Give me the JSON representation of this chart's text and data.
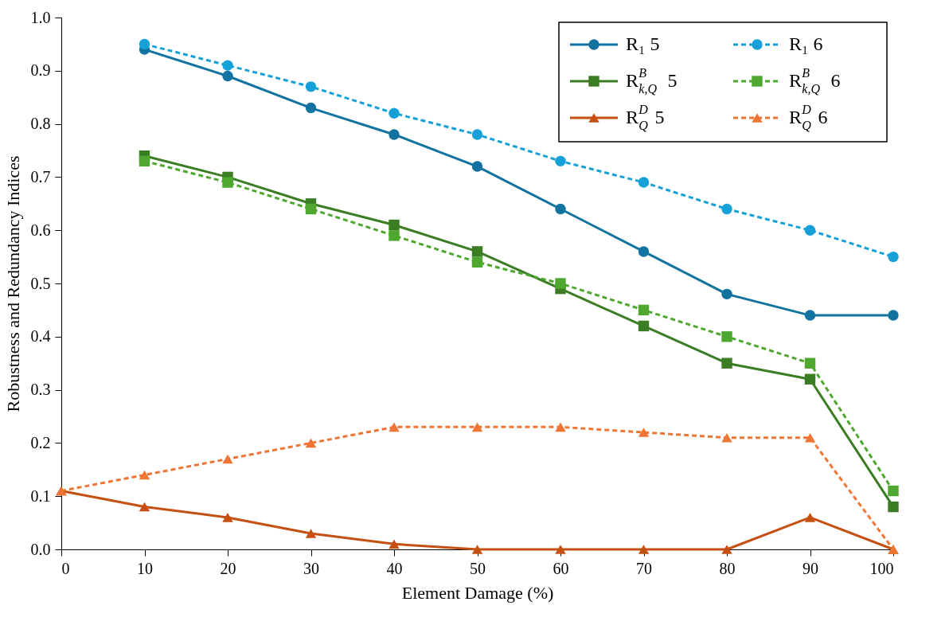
{
  "chart_data": {
    "type": "line",
    "xlabel": "Element Damage (%)",
    "ylabel": "Robustness and Redundancy Indices",
    "xlim": [
      0,
      100
    ],
    "xticks": [
      0,
      10,
      20,
      30,
      40,
      50,
      60,
      70,
      80,
      90,
      100
    ],
    "ylim": [
      0,
      1.0
    ],
    "yticks": [
      {
        "value": 0,
        "label": "0.0"
      },
      {
        "value": 0.1,
        "label": "0.1"
      },
      {
        "value": 0.2,
        "label": "0.2"
      },
      {
        "value": 0.3,
        "label": "0.3"
      },
      {
        "value": 0.4,
        "label": "0.4"
      },
      {
        "value": 0.5,
        "label": "0.5"
      },
      {
        "value": 0.6,
        "label": "0.6"
      },
      {
        "value": 0.7,
        "label": "0.7"
      },
      {
        "value": 0.8,
        "label": "0.8"
      },
      {
        "value": 0.9,
        "label": "0.9"
      },
      {
        "value": 1.0,
        "label": "1.0"
      }
    ],
    "grid": false,
    "legend": "top right",
    "series": [
      {
        "name": "R₁ 5",
        "color": "#1273a0",
        "marker": "circle",
        "line_style": "solid",
        "x": [
          10,
          20,
          30,
          40,
          50,
          60,
          70,
          80,
          90,
          100
        ],
        "values": [
          0.94,
          0.89,
          0.83,
          0.78,
          0.72,
          0.64,
          0.56,
          0.48,
          0.44,
          0.44
        ]
      },
      {
        "name": "R₁ 6",
        "color": "#15a0d8",
        "marker": "circle",
        "line_style": "dashed",
        "x": [
          10,
          20,
          30,
          40,
          50,
          60,
          70,
          80,
          90,
          100
        ],
        "values": [
          0.95,
          0.91,
          0.87,
          0.82,
          0.78,
          0.73,
          0.69,
          0.64,
          0.6,
          0.55
        ]
      },
      {
        "name": "R$^{B}$$_{k,Q}$ 5",
        "color": "#3a7d22",
        "marker": "square",
        "line_style": "solid",
        "x": [
          10,
          20,
          30,
          40,
          50,
          60,
          70,
          80,
          90,
          100
        ],
        "values": [
          0.74,
          0.7,
          0.65,
          0.61,
          0.56,
          0.49,
          0.42,
          0.35,
          0.32,
          0.08
        ]
      },
      {
        "name": "R$^{B}$$_{k,Q}$ 6",
        "color": "#4ea72e",
        "marker": "square",
        "line_style": "dashed",
        "x": [
          10,
          20,
          30,
          40,
          50,
          60,
          70,
          80,
          90,
          100
        ],
        "values": [
          0.73,
          0.69,
          0.64,
          0.59,
          0.54,
          0.5,
          0.45,
          0.4,
          0.35,
          0.11
        ]
      },
      {
        "name": "R$^{D}$$_{Q}$ 5",
        "color": "#c55012",
        "marker": "triangle",
        "line_style": "solid",
        "x": [
          0,
          10,
          20,
          30,
          40,
          50,
          60,
          70,
          80,
          90,
          100
        ],
        "values": [
          0.11,
          0.08,
          0.06,
          0.03,
          0.01,
          0,
          0,
          0,
          0,
          0.06,
          0
        ]
      },
      {
        "name": "R$^{D}$$_{Q}$ 6",
        "color": "#ee7533",
        "marker": "triangle",
        "line_style": "dashed",
        "x": [
          0,
          10,
          20,
          30,
          40,
          50,
          60,
          70,
          80,
          90,
          100
        ],
        "values": [
          0.11,
          0.14,
          0.17,
          0.2,
          0.23,
          0.23,
          0.23,
          0.22,
          0.21,
          0.21,
          0
        ]
      }
    ]
  }
}
